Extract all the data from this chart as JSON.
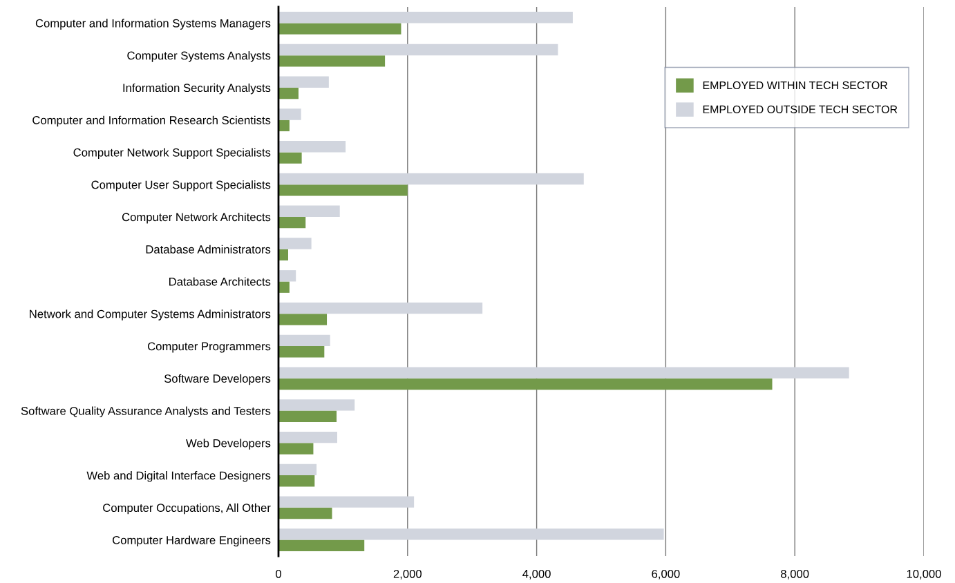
{
  "chart_data": {
    "type": "bar",
    "orientation": "horizontal",
    "categories": [
      "Computer and Information Systems Managers",
      "Computer Systems Analysts",
      "Information Security Analysts",
      "Computer and Information Research Scientists",
      "Computer Network Support Specialists",
      "Computer User Support Specialists",
      "Computer Network Architects",
      "Database Administrators",
      "Database Architects",
      "Network and Computer Systems Administrators",
      "Computer Programmers",
      "Software Developers",
      "Software Quality Assurance Analysts and Testers",
      "Web Developers",
      "Web and Digital Interface Designers",
      "Computer Occupations, All Other",
      "Computer Hardware Engineers"
    ],
    "series": [
      {
        "name": "EMPLOYED WITHIN TECH SECTOR",
        "color": "#739a4a",
        "values": [
          1900,
          1650,
          310,
          170,
          360,
          2000,
          420,
          150,
          170,
          750,
          710,
          7650,
          900,
          540,
          560,
          830,
          1330
        ]
      },
      {
        "name": "EMPLOYED OUTSIDE TECH SECTOR",
        "color": "#d1d5de",
        "values": [
          4560,
          4330,
          780,
          350,
          1040,
          4730,
          950,
          510,
          270,
          3160,
          800,
          8840,
          1180,
          910,
          590,
          2100,
          5970
        ]
      }
    ],
    "xlim": [
      0,
      10000
    ],
    "xticks": [
      {
        "value": 0,
        "label": "0"
      },
      {
        "value": 2000,
        "label": "2,000"
      },
      {
        "value": 4000,
        "label": "4,000"
      },
      {
        "value": 6000,
        "label": "6,000"
      },
      {
        "value": 8000,
        "label": "8,000"
      },
      {
        "value": 10000,
        "label": "10,000"
      }
    ],
    "grid": "x",
    "legend": "top right"
  }
}
